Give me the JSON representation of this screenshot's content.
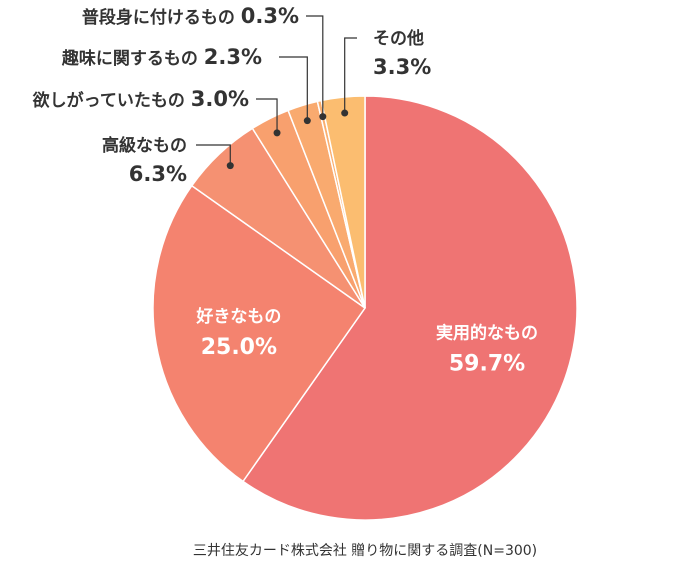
{
  "chart_data": {
    "type": "pie",
    "categories": [
      "実用的なもの",
      "好きなもの",
      "高級なもの",
      "欲しがっていたもの",
      "趣味に関するもの",
      "普段身に付けるもの",
      "その他"
    ],
    "values": [
      59.7,
      25.0,
      6.3,
      3.0,
      2.3,
      0.3,
      3.3
    ],
    "value_labels": [
      "59.7%",
      "25.0%",
      "6.3%",
      "3.0%",
      "2.3%",
      "0.3%",
      "3.3%"
    ],
    "colors": [
      "#ef7473",
      "#f4836f",
      "#f59172",
      "#f8a06e",
      "#f9aa6f",
      "#faaf70",
      "#fbbd70"
    ],
    "start_angle": "12 o'clock",
    "direction": "clockwise",
    "source": "三井住友カード株式会社 贈り物に関する調査(N=300)"
  }
}
